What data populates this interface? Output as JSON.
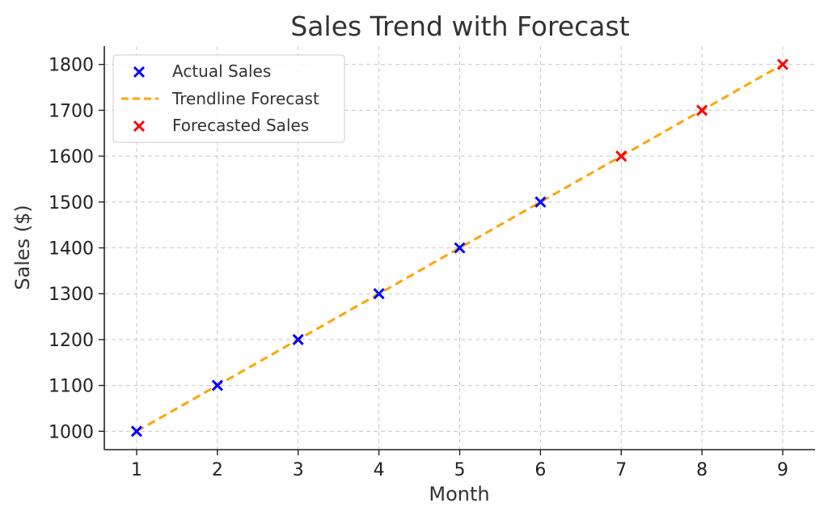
{
  "chart_data": {
    "type": "scatter",
    "title": "Sales Trend with Forecast",
    "xlabel": "Month",
    "ylabel": "Sales ($)",
    "xlim": [
      0.6,
      9.4
    ],
    "ylim": [
      960,
      1840
    ],
    "xticks": [
      1,
      2,
      3,
      4,
      5,
      6,
      7,
      8,
      9
    ],
    "yticks": [
      1000,
      1100,
      1200,
      1300,
      1400,
      1500,
      1600,
      1700,
      1800
    ],
    "grid": true,
    "legend_position": "top-left",
    "series": [
      {
        "name": "Actual Sales",
        "kind": "scatter",
        "marker": "x",
        "color": "#0000ff",
        "x": [
          1,
          2,
          3,
          4,
          5,
          6
        ],
        "y": [
          1000,
          1100,
          1200,
          1300,
          1400,
          1500
        ]
      },
      {
        "name": "Trendline Forecast",
        "kind": "line",
        "style": "dashed",
        "color": "#ffa500",
        "x": [
          1,
          2,
          3,
          4,
          5,
          6,
          7,
          8,
          9
        ],
        "y": [
          1000,
          1100,
          1200,
          1300,
          1400,
          1500,
          1600,
          1700,
          1800
        ]
      },
      {
        "name": "Forecasted Sales",
        "kind": "scatter",
        "marker": "x",
        "color": "#ff0000",
        "x": [
          7,
          8,
          9
        ],
        "y": [
          1600,
          1700,
          1800
        ]
      }
    ]
  }
}
